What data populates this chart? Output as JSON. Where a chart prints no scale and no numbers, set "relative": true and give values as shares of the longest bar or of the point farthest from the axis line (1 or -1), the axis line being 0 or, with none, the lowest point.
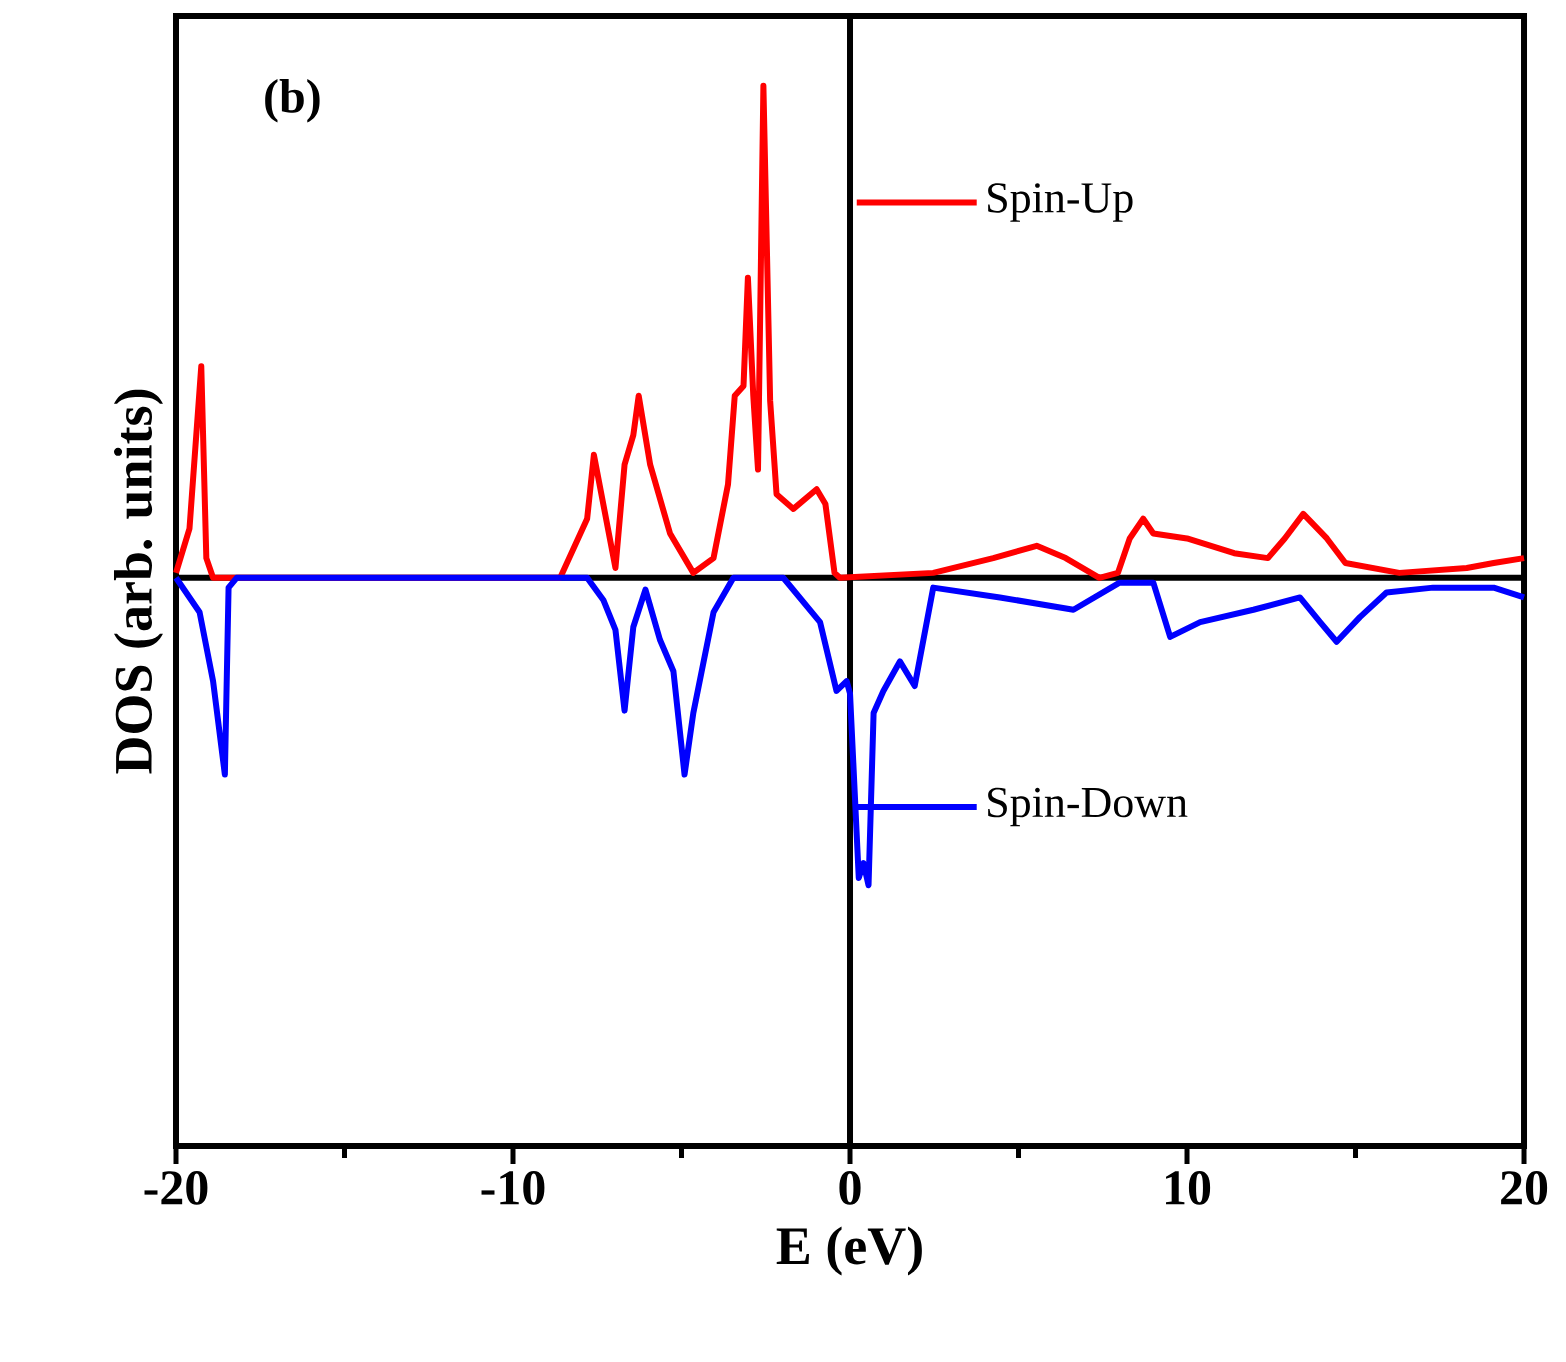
{
  "chart_data": {
    "type": "line",
    "xlabel": "E (eV)",
    "ylabel": "DOS (arb. units)",
    "relative": true,
    "xlim": [
      -20,
      20
    ],
    "xticks": [
      -20,
      -10,
      0,
      10,
      20
    ],
    "annotations": [
      "(b)"
    ],
    "legend": "right",
    "line_style": "solid",
    "marker": "none",
    "grid": false,
    "ref_lines": [
      {
        "axis": "x",
        "value": 0,
        "color": "#000000"
      }
    ],
    "series": [
      {
        "name": "Spin-Up",
        "color": "#ff0000",
        "x": [
          -20,
          -19.6,
          -19.25,
          -19.1,
          -18.9,
          -8.6,
          -7.8,
          -7.6,
          -6.96,
          -6.69,
          -6.43,
          -6.27,
          -5.93,
          -5.34,
          -4.65,
          -4.05,
          -3.62,
          -3.42,
          -3.16,
          -3.03,
          -2.87,
          -2.73,
          -2.57,
          -2.37,
          -2.18,
          -1.68,
          -0.99,
          -0.73,
          -0.46,
          -0.3,
          2.47,
          4.25,
          5.54,
          6.4,
          7.4,
          7.95,
          8.3,
          8.7,
          9.0,
          10.0,
          11.4,
          12.4,
          12.9,
          13.45,
          14.15,
          14.7,
          16.3,
          18.3,
          19.1,
          20
        ],
        "values": [
          0.01,
          0.1,
          0.43,
          0.04,
          0,
          0,
          0.12,
          0.25,
          0.02,
          0.23,
          0.29,
          0.37,
          0.23,
          0.09,
          0.01,
          0.04,
          0.19,
          0.37,
          0.39,
          0.61,
          0.37,
          0.22,
          1.0,
          0.36,
          0.17,
          0.14,
          0.18,
          0.15,
          0.01,
          0,
          0.01,
          0.04,
          0.065,
          0.04,
          0,
          0.01,
          0.08,
          0.12,
          0.09,
          0.08,
          0.05,
          0.04,
          0.08,
          0.13,
          0.08,
          0.03,
          0.01,
          0.02,
          0.03,
          0.04
        ]
      },
      {
        "name": "Spin-Down",
        "color": "#0000ff",
        "x": [
          -20,
          -19.3,
          -18.9,
          -18.55,
          -18.44,
          -18.2,
          -7.8,
          -7.32,
          -6.96,
          -6.69,
          -6.43,
          -6.07,
          -5.64,
          -5.24,
          -4.91,
          -4.65,
          -4.05,
          -3.46,
          -1.98,
          -0.89,
          -0.4,
          -0.1,
          0,
          0.26,
          0.4,
          0.55,
          0.7,
          0.99,
          1.48,
          1.92,
          2.47,
          4.45,
          6.63,
          8.0,
          9.0,
          9.5,
          10.39,
          11.97,
          13.35,
          13.95,
          14.44,
          15.13,
          15.92,
          17.3,
          19.1,
          20
        ],
        "values": [
          0,
          -0.07,
          -0.21,
          -0.4,
          -0.02,
          0,
          0,
          -0.045,
          -0.106,
          -0.27,
          -0.1,
          -0.024,
          -0.126,
          -0.19,
          -0.4,
          -0.275,
          -0.07,
          0,
          0,
          -0.09,
          -0.23,
          -0.21,
          -0.235,
          -0.61,
          -0.58,
          -0.625,
          -0.275,
          -0.23,
          -0.17,
          -0.22,
          -0.02,
          -0.04,
          -0.065,
          -0.01,
          -0.01,
          -0.12,
          -0.09,
          -0.065,
          -0.04,
          -0.09,
          -0.13,
          -0.08,
          -0.03,
          -0.02,
          -0.02,
          -0.04
        ]
      }
    ]
  }
}
